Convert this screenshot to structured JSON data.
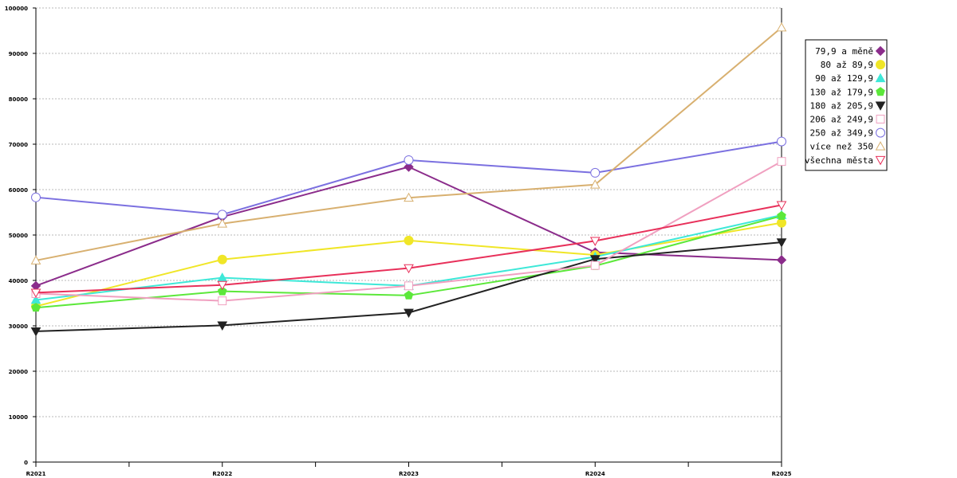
{
  "chart_data": {
    "type": "line",
    "categories": [
      "R2021",
      "R2022",
      "R2023",
      "R2024",
      "R2025"
    ],
    "ylim": [
      0,
      100000
    ],
    "yticks": [
      0,
      10000,
      20000,
      30000,
      40000,
      50000,
      60000,
      70000,
      80000,
      90000,
      100000
    ],
    "grid": true,
    "legend_position": "right",
    "series": [
      {
        "name": "79,9 a měně",
        "color": "#8b2c8b",
        "marker": "diamond",
        "filled": true,
        "values": [
          38800,
          54000,
          65000,
          46200,
          44500
        ]
      },
      {
        "name": "80 až 89,9",
        "color": "#f0e627",
        "marker": "circle",
        "filled": true,
        "values": [
          34300,
          44600,
          48800,
          45600,
          52700
        ]
      },
      {
        "name": "90 až 129,9",
        "color": "#3ee8d8",
        "marker": "triangle-up",
        "filled": true,
        "values": [
          35700,
          40600,
          38800,
          45200,
          54400
        ]
      },
      {
        "name": "130 až 179,9",
        "color": "#5ce83a",
        "marker": "pentagon",
        "filled": true,
        "values": [
          34000,
          37600,
          36700,
          43200,
          54200
        ]
      },
      {
        "name": "180 až 205,9",
        "color": "#222222",
        "marker": "triangle-down",
        "filled": true,
        "values": [
          28800,
          30100,
          32900,
          44700,
          48400
        ]
      },
      {
        "name": "206 až 249,9",
        "color": "#f0a0c0",
        "marker": "square",
        "filled": false,
        "values": [
          37100,
          35500,
          38800,
          43300,
          66200
        ]
      },
      {
        "name": "250 až 349,9",
        "color": "#7b70e0",
        "marker": "circle",
        "filled": false,
        "values": [
          58300,
          54500,
          66500,
          63700,
          70600
        ]
      },
      {
        "name": "více než 350",
        "color": "#d8b070",
        "marker": "triangle-up",
        "filled": false,
        "values": [
          44400,
          52500,
          58200,
          61100,
          95700
        ]
      },
      {
        "name": "všechna města",
        "color": "#e8305a",
        "marker": "triangle-down",
        "filled": false,
        "values": [
          37300,
          39000,
          42700,
          48700,
          56600
        ]
      }
    ]
  }
}
